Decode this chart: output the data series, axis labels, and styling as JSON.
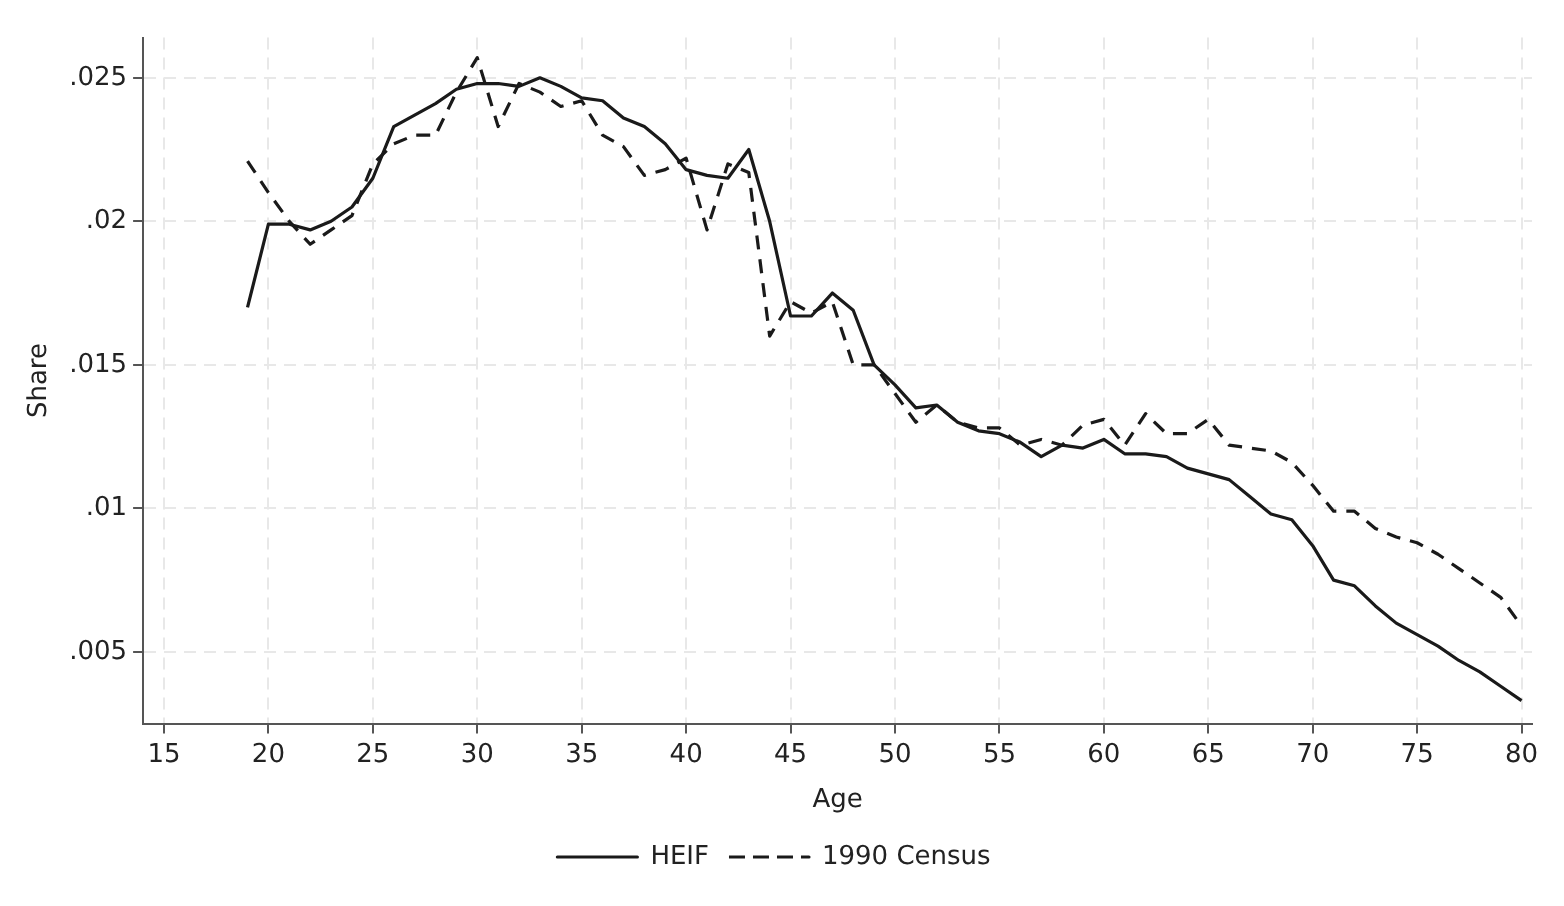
{
  "chart_data": {
    "type": "line",
    "xlabel": "Age",
    "ylabel": "Share",
    "x": [
      19,
      20,
      21,
      22,
      23,
      24,
      25,
      26,
      27,
      28,
      29,
      30,
      31,
      32,
      33,
      34,
      35,
      36,
      37,
      38,
      39,
      40,
      41,
      42,
      43,
      44,
      45,
      46,
      47,
      48,
      49,
      50,
      51,
      52,
      53,
      54,
      55,
      56,
      57,
      58,
      59,
      60,
      61,
      62,
      63,
      64,
      65,
      66,
      67,
      68,
      69,
      70,
      71,
      72,
      73,
      74,
      75,
      76,
      77,
      78,
      79,
      80
    ],
    "series": [
      {
        "name": "HEIF",
        "color": "#1a1a1a",
        "line_style": "solid",
        "values": [
          0.017,
          0.0199,
          0.0199,
          0.0197,
          0.02,
          0.0205,
          0.0215,
          0.0233,
          0.0237,
          0.0241,
          0.0246,
          0.0248,
          0.0248,
          0.0247,
          0.025,
          0.0247,
          0.0243,
          0.0242,
          0.0236,
          0.0233,
          0.0227,
          0.0218,
          0.0216,
          0.0215,
          0.0225,
          0.02,
          0.0167,
          0.0167,
          0.0175,
          0.0169,
          0.015,
          0.0143,
          0.0135,
          0.0136,
          0.013,
          0.0127,
          0.0126,
          0.0123,
          0.0118,
          0.0122,
          0.0121,
          0.0124,
          0.0119,
          0.0119,
          0.0118,
          0.0114,
          0.0112,
          0.011,
          0.0104,
          0.0098,
          0.0096,
          0.0087,
          0.0075,
          0.0073,
          0.0066,
          0.006,
          0.0056,
          0.0052,
          0.0047,
          0.0043,
          0.0038,
          0.0033
        ]
      },
      {
        "name": "1990 Census",
        "color": "#1a1a1a",
        "line_style": "dashed",
        "values": [
          0.0221,
          0.021,
          0.02,
          0.0192,
          0.0197,
          0.0202,
          0.022,
          0.0227,
          0.023,
          0.023,
          0.0245,
          0.0257,
          0.0233,
          0.0248,
          0.0245,
          0.024,
          0.0242,
          0.023,
          0.0226,
          0.0216,
          0.0218,
          0.0222,
          0.0197,
          0.022,
          0.0217,
          0.016,
          0.0172,
          0.0168,
          0.0172,
          0.015,
          0.015,
          0.014,
          0.013,
          0.0136,
          0.013,
          0.0128,
          0.0128,
          0.0122,
          0.0124,
          0.0122,
          0.0129,
          0.0131,
          0.0122,
          0.0133,
          0.0126,
          0.0126,
          0.0131,
          0.0122,
          0.0121,
          0.012,
          0.0116,
          0.0108,
          0.0099,
          0.0099,
          0.0093,
          0.009,
          0.0088,
          0.0084,
          0.0079,
          0.0074,
          0.0069,
          0.0059
        ]
      }
    ],
    "xlim": [
      14,
      80.5
    ],
    "xticks": [
      15,
      20,
      25,
      30,
      35,
      40,
      45,
      50,
      55,
      60,
      65,
      70,
      75,
      80
    ],
    "ylim": [
      0.0025,
      0.0264
    ],
    "yticks": [
      {
        "value": 0.005,
        "label": ".005"
      },
      {
        "value": 0.01,
        "label": ".01"
      },
      {
        "value": 0.015,
        "label": ".015"
      },
      {
        "value": 0.02,
        "label": ".02"
      },
      {
        "value": 0.025,
        "label": ".025"
      }
    ],
    "grid": true,
    "legend": "bottom",
    "marker": "none"
  }
}
